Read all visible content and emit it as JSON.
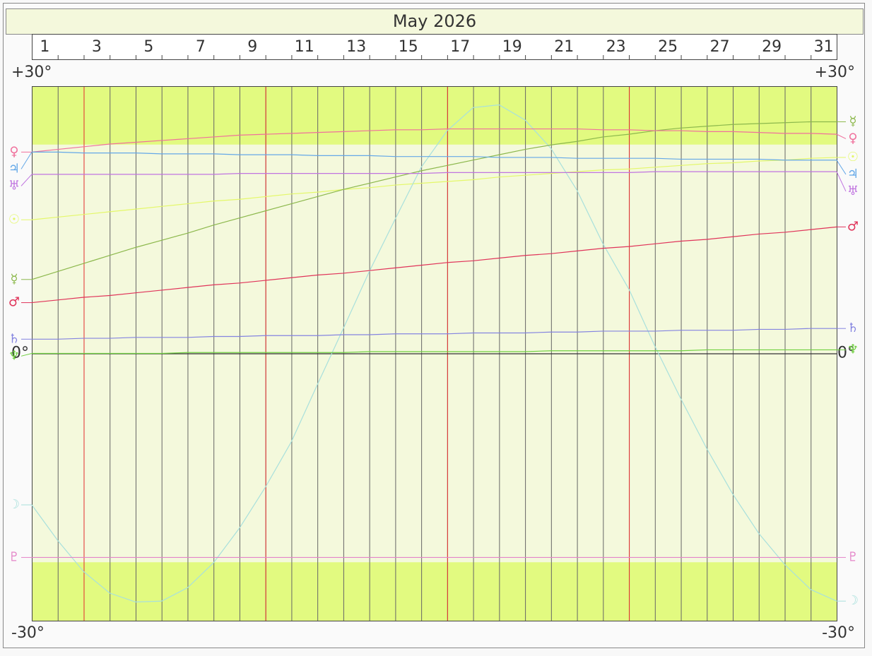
{
  "chart_data": {
    "type": "line",
    "title": "May 2026",
    "x": [
      1,
      2,
      3,
      4,
      5,
      6,
      7,
      8,
      9,
      10,
      11,
      12,
      13,
      14,
      15,
      16,
      17,
      18,
      19,
      20,
      21,
      22,
      23,
      24,
      25,
      26,
      27,
      28,
      29,
      30,
      31,
      32
    ],
    "xlim": [
      1,
      32
    ],
    "xticks": [
      1,
      3,
      5,
      7,
      9,
      11,
      13,
      15,
      17,
      19,
      21,
      23,
      25,
      27,
      29,
      31
    ],
    "marked_days": [
      3,
      10,
      17,
      24
    ],
    "ylim": [
      -30,
      30
    ],
    "yticks": [
      {
        "value": 30,
        "label": "+30°"
      },
      {
        "value": 0,
        "label": "0°"
      },
      {
        "value": -30,
        "label": "-30°"
      }
    ],
    "shade_beyond": 23.44,
    "series": [
      {
        "name": "☉",
        "color": "#e4f86a",
        "values": [
          15.0,
          15.3,
          15.6,
          15.9,
          16.2,
          16.5,
          16.8,
          17.1,
          17.3,
          17.6,
          17.9,
          18.1,
          18.4,
          18.6,
          18.9,
          19.1,
          19.3,
          19.5,
          19.8,
          20.0,
          20.2,
          20.4,
          20.6,
          20.7,
          20.9,
          21.1,
          21.3,
          21.4,
          21.6,
          21.7,
          21.9,
          22.0
        ]
      },
      {
        "name": "☽",
        "color": "#a8e0dc",
        "values": [
          -17.0,
          -21.0,
          -24.5,
          -26.9,
          -27.9,
          -27.8,
          -26.3,
          -23.5,
          -19.6,
          -15.0,
          -9.9,
          -3.5,
          2.8,
          9.2,
          15.1,
          20.9,
          25.0,
          27.6,
          27.9,
          26.2,
          23.0,
          18.3,
          12.3,
          7.2,
          0.8,
          -5.1,
          -10.7,
          -15.8,
          -20.2,
          -23.7,
          -26.5,
          -27.8
        ]
      },
      {
        "name": "☿",
        "color": "#8cb84c",
        "values": [
          8.3,
          9.2,
          10.1,
          11.0,
          11.9,
          12.7,
          13.5,
          14.4,
          15.2,
          16.0,
          16.8,
          17.6,
          18.4,
          19.1,
          19.8,
          20.5,
          21.1,
          21.7,
          22.3,
          22.9,
          23.4,
          23.8,
          24.3,
          24.6,
          25.0,
          25.3,
          25.5,
          25.7,
          25.8,
          25.9,
          26.0,
          26.0
        ]
      },
      {
        "name": "♀",
        "color": "#f0709c",
        "values": [
          22.6,
          22.9,
          23.2,
          23.5,
          23.7,
          23.9,
          24.1,
          24.3,
          24.5,
          24.6,
          24.7,
          24.8,
          24.9,
          25.0,
          25.1,
          25.1,
          25.2,
          25.2,
          25.2,
          25.2,
          25.2,
          25.2,
          25.1,
          25.1,
          25.0,
          25.0,
          24.9,
          24.9,
          24.8,
          24.7,
          24.7,
          24.6
        ]
      },
      {
        "name": "♂",
        "color": "#e0345a",
        "values": [
          5.7,
          6.0,
          6.3,
          6.5,
          6.8,
          7.1,
          7.4,
          7.7,
          7.9,
          8.2,
          8.5,
          8.8,
          9.0,
          9.3,
          9.6,
          9.9,
          10.2,
          10.4,
          10.7,
          11.0,
          11.2,
          11.5,
          11.8,
          12.0,
          12.3,
          12.6,
          12.8,
          13.1,
          13.4,
          13.6,
          13.9,
          14.2
        ]
      },
      {
        "name": "♃",
        "color": "#64a8e8",
        "values": [
          22.6,
          22.6,
          22.5,
          22.5,
          22.5,
          22.4,
          22.4,
          22.4,
          22.3,
          22.3,
          22.3,
          22.2,
          22.2,
          22.2,
          22.1,
          22.1,
          22.1,
          22.1,
          22.0,
          22.0,
          22.0,
          21.9,
          21.9,
          21.9,
          21.9,
          21.8,
          21.8,
          21.8,
          21.8,
          21.7,
          21.7,
          21.7
        ]
      },
      {
        "name": "♄",
        "color": "#8484e0",
        "values": [
          1.6,
          1.6,
          1.7,
          1.7,
          1.8,
          1.8,
          1.8,
          1.9,
          1.9,
          2.0,
          2.0,
          2.0,
          2.1,
          2.1,
          2.2,
          2.2,
          2.2,
          2.3,
          2.3,
          2.3,
          2.4,
          2.4,
          2.5,
          2.5,
          2.5,
          2.6,
          2.6,
          2.6,
          2.7,
          2.7,
          2.8,
          2.8
        ]
      },
      {
        "name": "♅",
        "color": "#c074e0",
        "values": [
          20.1,
          20.1,
          20.1,
          20.1,
          20.1,
          20.1,
          20.1,
          20.1,
          20.2,
          20.2,
          20.2,
          20.2,
          20.2,
          20.2,
          20.2,
          20.2,
          20.3,
          20.3,
          20.3,
          20.3,
          20.3,
          20.3,
          20.3,
          20.3,
          20.4,
          20.4,
          20.4,
          20.4,
          20.4,
          20.4,
          20.4,
          20.4
        ]
      },
      {
        "name": "♆",
        "color": "#70d040",
        "values": [
          0.0,
          0.0,
          0.0,
          0.0,
          0.0,
          0.0,
          0.1,
          0.1,
          0.1,
          0.1,
          0.1,
          0.1,
          0.1,
          0.2,
          0.2,
          0.2,
          0.2,
          0.2,
          0.2,
          0.2,
          0.3,
          0.3,
          0.3,
          0.3,
          0.3,
          0.3,
          0.4,
          0.4,
          0.4,
          0.4,
          0.4,
          0.4
        ]
      },
      {
        "name": "♇",
        "color": "#e484c8",
        "values": [
          -22.9,
          -22.9,
          -22.9,
          -22.9,
          -22.9,
          -22.9,
          -22.9,
          -22.9,
          -22.9,
          -22.9,
          -22.9,
          -22.9,
          -22.9,
          -22.9,
          -22.9,
          -22.9,
          -22.9,
          -22.9,
          -22.9,
          -22.9,
          -22.9,
          -22.9,
          -22.9,
          -22.9,
          -22.9,
          -22.9,
          -22.9,
          -22.9,
          -22.9,
          -22.9,
          -22.9,
          -22.9
        ]
      }
    ]
  }
}
